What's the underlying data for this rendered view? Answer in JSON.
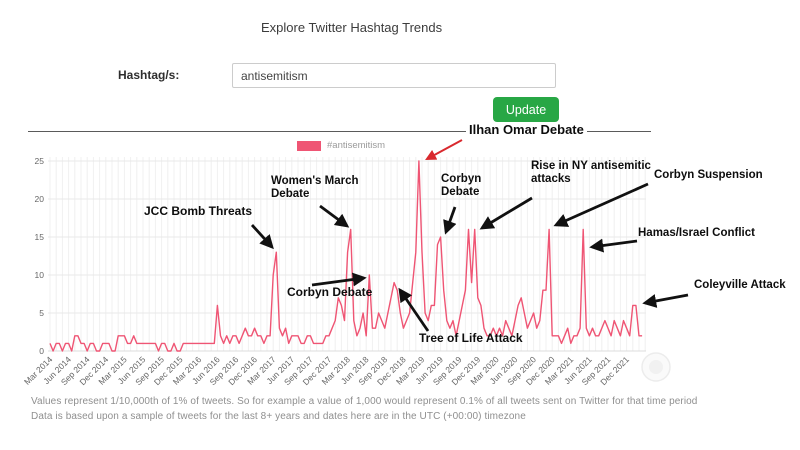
{
  "header": {
    "title": "Explore Twitter Hashtag Trends"
  },
  "form": {
    "hashtag_label": "Hashtag/s:",
    "hashtag_value": "antisemitism",
    "update_label": "Update"
  },
  "legend": {
    "label": "#antisemitism",
    "swatch_color": "#ef5574"
  },
  "chart_data": {
    "type": "line",
    "title": "",
    "xlabel": "",
    "ylabel": "",
    "x_start": "Mar 2014",
    "x_end": "Feb 2022",
    "samples_per_month": 2,
    "xtick_labels": [
      "Mar 2014",
      "Jun 2014",
      "Sep 2014",
      "Dec 2014",
      "Mar 2015",
      "Jun 2015",
      "Sep 2015",
      "Dec 2015",
      "Mar 2016",
      "Jun 2016",
      "Sep 2016",
      "Dec 2016",
      "Mar 2017",
      "Jun 2017",
      "Sep 2017",
      "Dec 2017",
      "Mar 2018",
      "Jun 2018",
      "Sep 2018",
      "Dec 2018",
      "Mar 2019",
      "Jun 2019",
      "Sep 2019",
      "Dec 2019",
      "Mar 2020",
      "Jun 2020",
      "Sep 2020",
      "Dec 2020",
      "Mar 2021",
      "Jun 2021",
      "Sep 2021",
      "Dec 2021"
    ],
    "yticks": [
      0,
      5,
      10,
      15,
      20,
      25
    ],
    "ylim": [
      0,
      25
    ],
    "grid": true,
    "legend_position": "top-center",
    "series": [
      {
        "name": "#antisemitism",
        "color": "#ef5574",
        "values": [
          1,
          0,
          1,
          1,
          0,
          1,
          1,
          0,
          2,
          2,
          1,
          1,
          0,
          1,
          1,
          0,
          0,
          1,
          1,
          1,
          0,
          0,
          2,
          2,
          2,
          1,
          1,
          2,
          1,
          1,
          1,
          1,
          1,
          1,
          1,
          0,
          1,
          1,
          0,
          0,
          1,
          0,
          0,
          1,
          1,
          1,
          1,
          1,
          1,
          1,
          1,
          1,
          1,
          1,
          6,
          2,
          1,
          2,
          1,
          2,
          2,
          1,
          2,
          3,
          2,
          2,
          3,
          2,
          2,
          1,
          2,
          2,
          10,
          13,
          3,
          2,
          3,
          1,
          2,
          2,
          2,
          1,
          1,
          2,
          2,
          1,
          1,
          1,
          1,
          2,
          2,
          3,
          4,
          7,
          6,
          4,
          13,
          16,
          4,
          2,
          3,
          5,
          2,
          10,
          3,
          3,
          5,
          4,
          3,
          5,
          7,
          9,
          8,
          5,
          3,
          4,
          5,
          9,
          13,
          25,
          13,
          5,
          4,
          6,
          6,
          14,
          15,
          8,
          4,
          3,
          4,
          2,
          4,
          6,
          8,
          16,
          9,
          16,
          7,
          6,
          3,
          2,
          2,
          3,
          2,
          3,
          2,
          4,
          3,
          2,
          4,
          6,
          7,
          5,
          3,
          4,
          5,
          3,
          4,
          8,
          8,
          16,
          2,
          2,
          2,
          1,
          2,
          3,
          1,
          2,
          2,
          3,
          16,
          3,
          2,
          3,
          2,
          2,
          3,
          4,
          3,
          2,
          4,
          3,
          2,
          4,
          3,
          2,
          6,
          6,
          2,
          2
        ]
      }
    ]
  },
  "annotations": [
    {
      "id": "jcc-bomb-threats",
      "label": "JCC Bomb Threats"
    },
    {
      "id": "womens-march-debate",
      "label": "Women's March Debate"
    },
    {
      "id": "corbyn-debate-2018",
      "label": "Corbyn Debate"
    },
    {
      "id": "ilhan-omar-debate",
      "label": "Ilhan Omar Debate"
    },
    {
      "id": "corbyn-debate-2019",
      "label": "Corbyn Debate"
    },
    {
      "id": "tree-of-life-attack",
      "label": "Tree of Life Attack"
    },
    {
      "id": "rise-ny-attacks",
      "label": "Rise in NY antisemitic attacks"
    },
    {
      "id": "corbyn-suspension",
      "label": "Corbyn Suspension"
    },
    {
      "id": "hamas-israel",
      "label": "Hamas/Israel Conflict"
    },
    {
      "id": "coleyville-attack",
      "label": "Coleyville Attack"
    }
  ],
  "footer": {
    "line1": "Values represent 1/10,000th of 1% of tweets. So for example a value of 1,000 would represent 0.1% of all tweets sent on Twitter for that time period",
    "line2": "Data is based upon a sample of tweets for the last 8+ years and dates here are in the UTC (+00:00) timezone"
  }
}
